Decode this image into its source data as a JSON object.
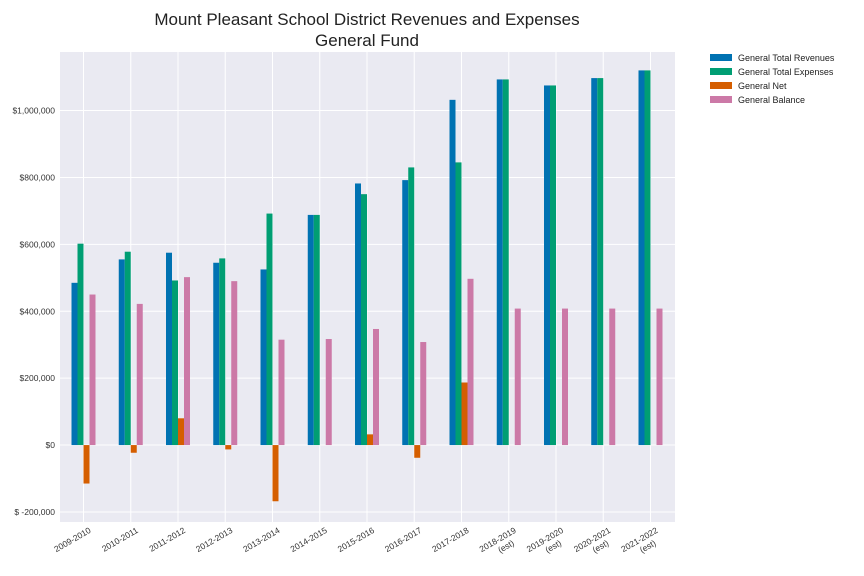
{
  "chart_data": {
    "type": "bar",
    "title": "Mount Pleasant School District Revenues and Expenses",
    "subtitle": "General Fund",
    "xlabel": "",
    "ylabel": "",
    "ylim": [
      -230000,
      1175000
    ],
    "yticks": [
      -200000,
      0,
      200000,
      400000,
      600000,
      800000,
      1000000
    ],
    "ytick_labels": [
      "$ -200,000",
      "$0",
      "$200,000",
      "$400,000",
      "$600,000",
      "$800,000",
      "$1,000,000"
    ],
    "categories": [
      [
        "2009-2010"
      ],
      [
        "2010-2011"
      ],
      [
        "2011-2012"
      ],
      [
        "2012-2013"
      ],
      [
        "2013-2014"
      ],
      [
        "2014-2015"
      ],
      [
        "2015-2016"
      ],
      [
        "2016-2017"
      ],
      [
        "2017-2018"
      ],
      [
        "2018-2019",
        "(est)"
      ],
      [
        "2019-2020",
        "(est)"
      ],
      [
        "2020-2021",
        "(est)"
      ],
      [
        "2021-2022",
        "(est)"
      ]
    ],
    "grid": true,
    "legend_position": "outside-top-right",
    "series": [
      {
        "name": "General Total Revenues",
        "color": "#0072b2",
        "values": [
          485000,
          555000,
          575000,
          545000,
          525000,
          688000,
          782000,
          792000,
          1032000,
          1093000,
          1075000,
          1097000,
          1120000
        ]
      },
      {
        "name": "General Total Expenses",
        "color": "#009e73",
        "values": [
          602000,
          578000,
          492000,
          558000,
          692000,
          688000,
          750000,
          830000,
          845000,
          1093000,
          1075000,
          1097000,
          1120000
        ]
      },
      {
        "name": "General Net",
        "color": "#d55e00",
        "values": [
          -115000,
          -23000,
          80000,
          -13000,
          -168000,
          0,
          32000,
          -38000,
          187000,
          0,
          0,
          0,
          0
        ]
      },
      {
        "name": "General Balance",
        "color": "#cc79a7",
        "values": [
          450000,
          422000,
          502000,
          490000,
          315000,
          317000,
          347000,
          308000,
          497000,
          408000,
          408000,
          408000,
          408000
        ]
      }
    ]
  }
}
